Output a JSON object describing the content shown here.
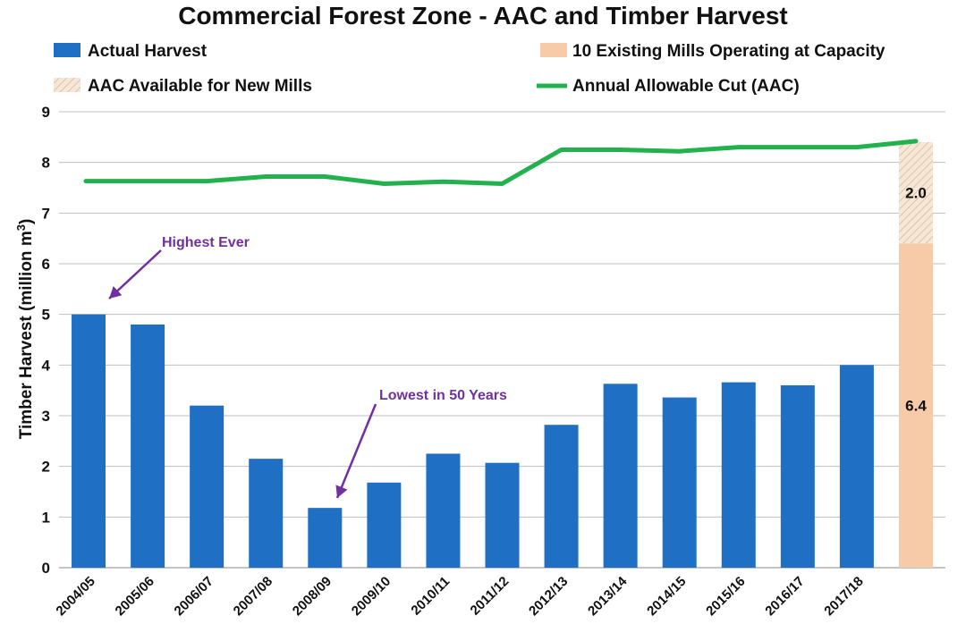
{
  "chart_data": {
    "type": "bar",
    "title": "Commercial Forest Zone - AAC and Timber Harvest",
    "ylabel": "Timber Harvest (million m",
    "ylabel_sup": "3",
    "ylabel_close": ")",
    "ylim": [
      0,
      9
    ],
    "yticks": [
      0,
      1,
      2,
      3,
      4,
      5,
      6,
      7,
      8,
      9
    ],
    "grid": true,
    "legend_placement": "top",
    "categories": [
      "2004/05",
      "2005/06",
      "2006/07",
      "2007/08",
      "2008/09",
      "2009/10",
      "2010/11",
      "2011/12",
      "2012/13",
      "2013/14",
      "2014/15",
      "2015/16",
      "2016/17",
      "2017/18",
      ""
    ],
    "series": [
      {
        "name": "Actual Harvest",
        "type": "bar",
        "color": "#1f6fc5",
        "values": [
          5.0,
          4.8,
          3.2,
          2.15,
          1.18,
          1.68,
          2.25,
          2.07,
          2.82,
          3.63,
          3.36,
          3.66,
          3.6,
          4.0,
          null
        ]
      },
      {
        "name": "10 Existing Mills Operating at Capacity",
        "type": "stacked-bar",
        "color": "#f8cba8",
        "category_index": 14,
        "value": 6.4,
        "label": "6.4"
      },
      {
        "name": "AAC Available for New Mills",
        "type": "stacked-bar-hatched",
        "color": "#f1ddc4",
        "category_index": 14,
        "value": 2.0,
        "label": "2.0"
      },
      {
        "name": "Annual Allowable Cut (AAC)",
        "type": "line",
        "color": "#22b14c",
        "values": [
          7.63,
          7.63,
          7.63,
          7.72,
          7.72,
          7.58,
          7.62,
          7.58,
          8.25,
          8.25,
          8.22,
          8.3,
          8.3,
          8.3,
          8.42
        ]
      }
    ],
    "annotations": [
      {
        "text": "Highest Ever",
        "category_index": 0,
        "value": 5.0
      },
      {
        "text": "Lowest in 50 Years",
        "category_index": 4,
        "value": 1.18
      }
    ]
  }
}
